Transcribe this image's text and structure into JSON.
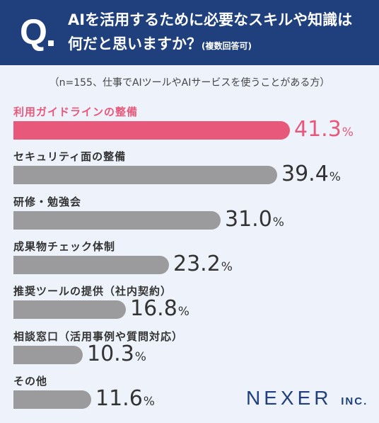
{
  "header": {
    "q_letter": "Q",
    "line1": "AIを活用するために必要なスキルや知識は",
    "line2": "何だと思いますか？",
    "sub": "(複数回答可)"
  },
  "note": "（n=155、仕事でAIツールやAIサービスを使うことがある方）",
  "logo": {
    "main": "NEXER",
    "suffix": "INC."
  },
  "colors": {
    "highlight": "#e8587a",
    "bar": "#9b9b9d",
    "navy": "#1f3f7d"
  },
  "chart_data": {
    "type": "bar",
    "orientation": "horizontal",
    "unit": "%",
    "categories": [
      "利用ガイドラインの整備",
      "セキュリティ面の整備",
      "研修・勉強会",
      "成果物チェック体制",
      "推奨ツールの提供（社内契約）",
      "相談窓口（活用事例や質問対応）",
      "その他"
    ],
    "values": [
      41.3,
      39.4,
      31.0,
      23.2,
      16.8,
      10.3,
      11.6
    ],
    "value_labels": [
      "41.3",
      "39.4",
      "31.0",
      "23.2",
      "16.8",
      "10.3",
      "11.6"
    ],
    "highlight_index": 0,
    "xlim": [
      0,
      50
    ]
  }
}
